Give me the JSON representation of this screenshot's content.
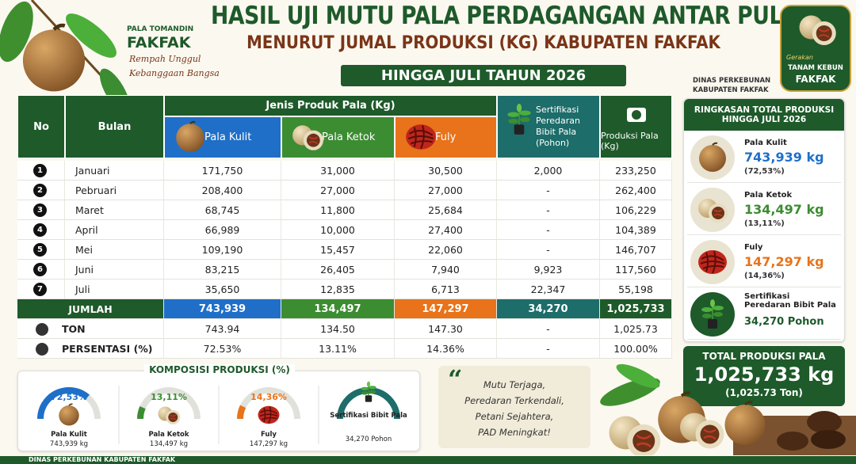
{
  "header": {
    "brand_top": "PALA TOMANDIN",
    "brand": "FAKFAK",
    "tagline": [
      "Rempah Unggul",
      "Kebanggaan Bangsa"
    ],
    "title": "HASIL UJI MUTU PALA PERDAGANGAN ANTAR PULAU",
    "subtitle": "MENURUT JUMAL PRODUKSI (KG) KABUPATEN FAKFAK",
    "period": "HINGGA JULI TAHUN 2026",
    "logo": [
      "Gerakan",
      "TANAM KEBUN",
      "FAKFAK"
    ],
    "agency": [
      "DINAS PERKEBUNAN",
      "KABUPATEN FAKFAK"
    ]
  },
  "table": {
    "columns": {
      "no": "No",
      "month": "Bulan",
      "group": "Jenis Produk Pala (Kg)",
      "products": [
        "Pala Kulit",
        "Pala Ketok",
        "Fuly"
      ],
      "certification": "Sertifikasi Peredaran Bibit Pala (Pohon)",
      "total": "Produksi Pala (Kg)"
    },
    "rows": [
      [
        "1",
        "Januari",
        "171,750",
        "31,000",
        "30,500",
        "2,000",
        "233,250"
      ],
      [
        "2",
        "Pebruari",
        "208,400",
        "27,000",
        "27,000",
        "-",
        "262,400"
      ],
      [
        "3",
        "Maret",
        "68,745",
        "11,800",
        "25,684",
        "-",
        "106,229"
      ],
      [
        "4",
        "April",
        "66,989",
        "10,000",
        "27,400",
        "-",
        "104,389"
      ],
      [
        "5",
        "Mei",
        "109,190",
        "15,457",
        "22,060",
        "-",
        "146,707"
      ],
      [
        "6",
        "Juni",
        "83,215",
        "26,405",
        "7,940",
        "9,923",
        "117,560"
      ],
      [
        "7",
        "Juli",
        "35,650",
        "12,835",
        "6,713",
        "22,347",
        "55,198"
      ]
    ],
    "totals": [
      [
        "JUMLAH",
        "743,939",
        "134,497",
        "147,297",
        "34,270",
        "1,025,733"
      ],
      [
        "TON",
        "743.94",
        "134.50",
        "147.30",
        "-",
        "1,025.73"
      ],
      [
        "PERSENTASI (%)",
        "72.53%",
        "13.11%",
        "14.36%",
        "-",
        "100.00%"
      ]
    ]
  },
  "summary": {
    "title": "RINGKASAN TOTAL PRODUKSI HINGGA JULI 2026",
    "items": [
      {
        "name": "Pala Kulit",
        "value": "743,939 kg",
        "share": "(72,53%)"
      },
      {
        "name": "Pala Ketok",
        "value": "134,497 kg",
        "share": "(13,11%)"
      },
      {
        "name": "Fuly",
        "value": "147,297 kg",
        "share": "(14,36%)"
      },
      {
        "name": "Sertifikasi Peredaran Bibit Pala",
        "value": "34,270 Pohon"
      }
    ],
    "total_title": "TOTAL PRODUKSI PALA",
    "total_value": "1,025,733 kg",
    "total_ton": "(1,025.73 Ton)"
  },
  "composition": {
    "title": "KOMPOSISI PRODUKSI (%)",
    "gauges": [
      {
        "percent": 72.53,
        "label": "72,53%",
        "name": "Pala Kulit",
        "value": "743,939 kg"
      },
      {
        "percent": 13.11,
        "label": "13,11%",
        "name": "Pala Ketok",
        "value": "134,497 kg"
      },
      {
        "percent": 14.36,
        "label": "14,36%",
        "name": "Fuly",
        "value": "147,297 kg"
      },
      {
        "name": "Sertifikasi Bibit Pala",
        "value": "34,270 Pohon"
      }
    ]
  },
  "quote": [
    "Mutu Terjaga,",
    "Peredaran Terkendali,",
    "Petani Sejahtera,",
    "PAD Meningkat!"
  ],
  "footer": "DINAS PERKEBUNAN KABUPATEN FAKFAK"
}
